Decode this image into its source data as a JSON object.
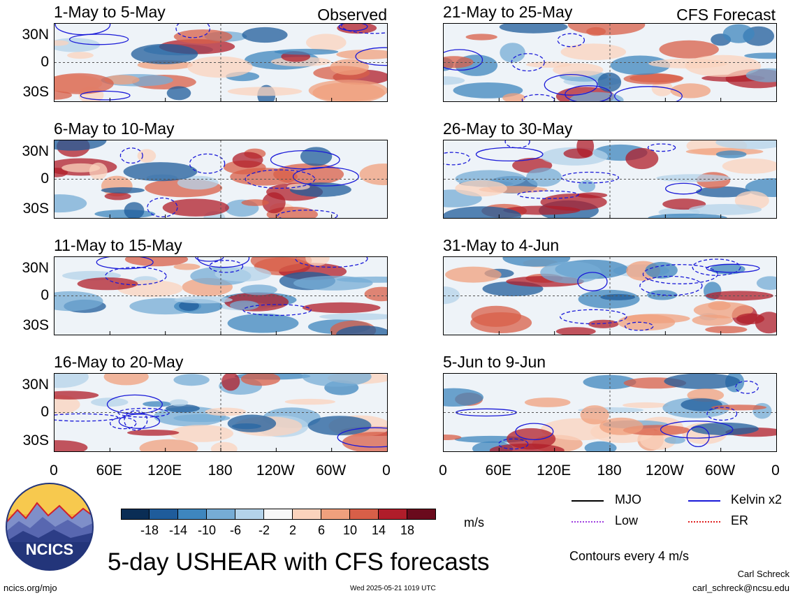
{
  "chart_data": {
    "type": "heatmap",
    "title": "5-day USHEAR with CFS forecasts",
    "variable": "USHEAR",
    "units": "m/s",
    "y_ticks": [
      "30N",
      "0",
      "30S"
    ],
    "x_ticks": [
      "0",
      "60E",
      "120E",
      "180",
      "120W",
      "60W",
      "0"
    ],
    "colorbar": {
      "tick_labels": [
        "-18",
        "-14",
        "-10",
        "-6",
        "-2",
        "2",
        "6",
        "10",
        "14",
        "18"
      ],
      "colors": [
        "#0a2d55",
        "#1f5c9b",
        "#3e86be",
        "#76acd5",
        "#b4d3ea",
        "#f7f7f7",
        "#fbd3bd",
        "#f0a07d",
        "#d85f48",
        "#b01d2a",
        "#6a0a1c"
      ]
    },
    "left_column_label": "Observed",
    "right_column_label": "CFS Forecast",
    "panels_observed": [
      "1-May to 5-May",
      "6-May to 10-May",
      "11-May to 15-May",
      "16-May to 20-May"
    ],
    "panels_forecast": [
      "21-May to 25-May",
      "26-May to 30-May",
      "31-May to 4-Jun",
      "5-Jun to 9-Jun"
    ],
    "legend": [
      {
        "name": "MJO",
        "color": "#000000"
      },
      {
        "name": "Kelvin x2",
        "color": "#1a1ad8"
      },
      {
        "name": "Low",
        "color": "#a040e0"
      },
      {
        "name": "ER",
        "color": "#e02020"
      }
    ],
    "contour_note": "Contours every 4 m/s"
  },
  "logo_text": "NCICS",
  "footer": {
    "site": "ncics.org/mjo",
    "timestamp": "Wed 2025-05-21 1019 UTC",
    "author": "Carl Schreck",
    "email": "carl_schreck@ncsu.edu"
  }
}
